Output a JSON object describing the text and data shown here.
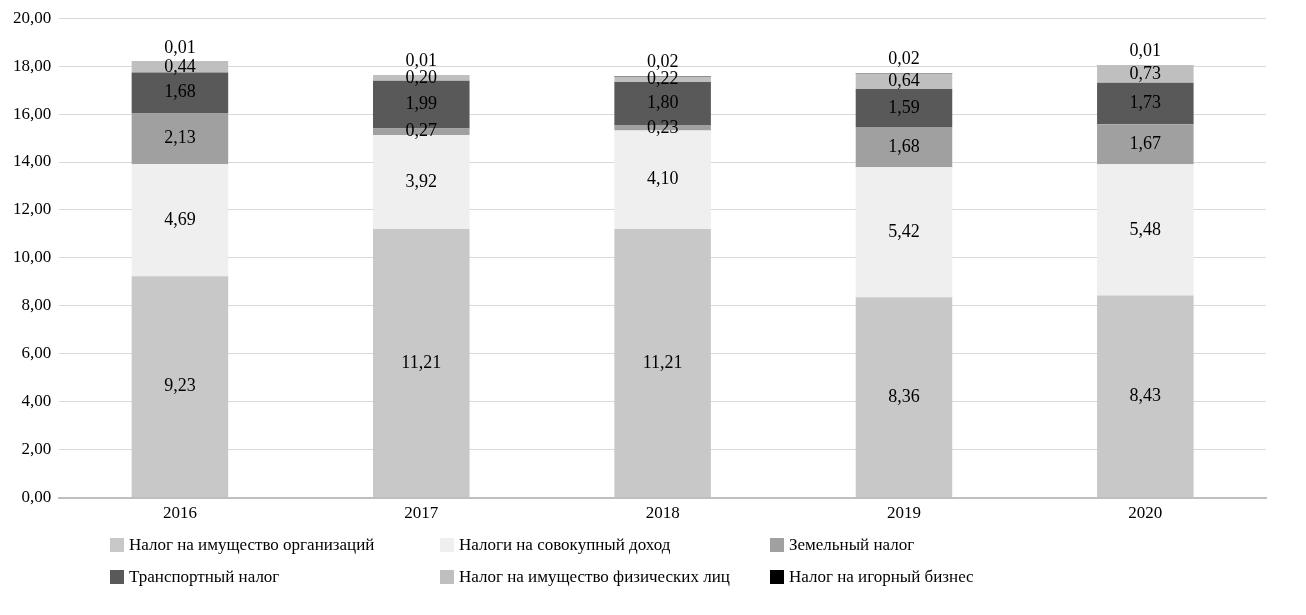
{
  "chart_data": {
    "type": "bar",
    "stacked": true,
    "categories": [
      "2016",
      "2017",
      "2018",
      "2019",
      "2020"
    ],
    "series": [
      {
        "name": "Налог на имущество организаций",
        "color": "#c8c8c8",
        "values": [
          9.23,
          11.21,
          11.21,
          8.36,
          8.43
        ],
        "value_labels": [
          "9,23",
          "11,21",
          "11,21",
          "8,36",
          "8,43"
        ]
      },
      {
        "name": "Налоги на совокупный доход",
        "color": "#efefef",
        "values": [
          4.69,
          3.92,
          4.1,
          5.42,
          5.48
        ],
        "value_labels": [
          "4,69",
          "3,92",
          "4,10",
          "5,42",
          "5,48"
        ]
      },
      {
        "name": "Земельный налог",
        "color": "#a0a0a0",
        "values": [
          2.13,
          0.27,
          0.23,
          1.68,
          1.67
        ],
        "value_labels": [
          "2,13",
          "0,27",
          "0,23",
          "1,68",
          "1,67"
        ]
      },
      {
        "name": "Транспортный налог",
        "color": "#595959",
        "values": [
          1.68,
          1.99,
          1.8,
          1.59,
          1.73
        ],
        "value_labels": [
          "1,68",
          "1,99",
          "1,80",
          "1,59",
          "1,73"
        ]
      },
      {
        "name": "Налог на имущество физических лиц",
        "color": "#bfbfbf",
        "values": [
          0.44,
          0.2,
          0.22,
          0.64,
          0.73
        ],
        "value_labels": [
          "0,44",
          "0,20",
          "0,22",
          "0,64",
          "0,73"
        ]
      },
      {
        "name": "Налог на игорный бизнес",
        "color": "#000000",
        "values": [
          0.01,
          0.01,
          0.02,
          0.02,
          0.01
        ],
        "value_labels": [
          "0,01",
          "0,01",
          "0,02",
          "0,02",
          "0,01"
        ]
      }
    ],
    "ylim": [
      0,
      20
    ],
    "yticks": [
      {
        "value": 0,
        "label": "0,00"
      },
      {
        "value": 2,
        "label": "2,00"
      },
      {
        "value": 4,
        "label": "4,00"
      },
      {
        "value": 6,
        "label": "6,00"
      },
      {
        "value": 8,
        "label": "8,00"
      },
      {
        "value": 10,
        "label": "10,00"
      },
      {
        "value": 12,
        "label": "12,00"
      },
      {
        "value": 14,
        "label": "14,00"
      },
      {
        "value": 16,
        "label": "16,00"
      },
      {
        "value": 18,
        "label": "18,00"
      },
      {
        "value": 20,
        "label": "20,00"
      }
    ],
    "grid": "y",
    "legend": "bottom"
  }
}
